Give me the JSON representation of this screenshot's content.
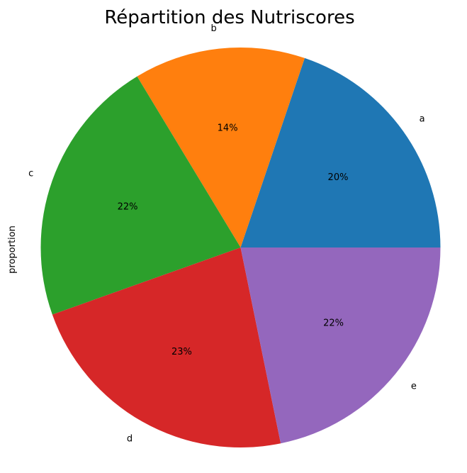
{
  "chart_data": {
    "type": "pie",
    "title": "Répartition des Nutriscores",
    "ylabel": "proportion",
    "categories": [
      "a",
      "b",
      "c",
      "d",
      "e"
    ],
    "values": [
      20,
      14,
      22,
      23,
      22
    ],
    "value_labels": [
      "20%",
      "14%",
      "22%",
      "23%",
      "22%"
    ],
    "colors": [
      "#1f77b4",
      "#ff7f0e",
      "#2ca02c",
      "#d62728",
      "#9467bd"
    ],
    "start_angle_deg": 0,
    "direction": "counterclockwise",
    "legend": "none"
  }
}
